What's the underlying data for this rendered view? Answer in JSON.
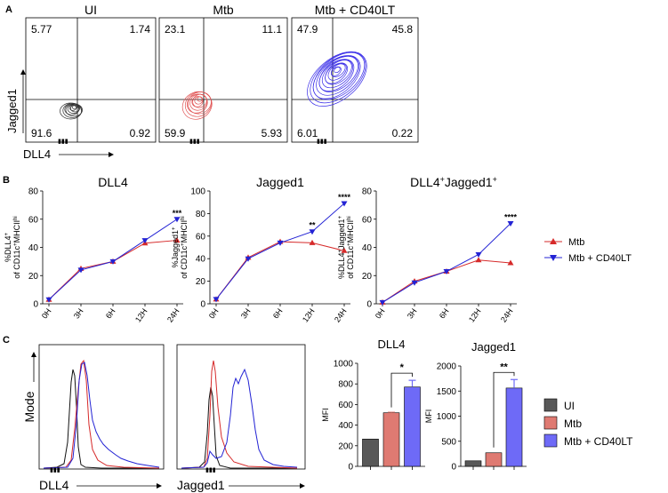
{
  "panels": {
    "a": "A",
    "b": "B",
    "c": "C"
  },
  "colors": {
    "ui": "#333333",
    "mtb": "#e05050",
    "cd40": "#3a2ee8",
    "bar_ui": "#585858",
    "bar_mtb": "#df7a72",
    "bar_cd40": "#6e6af7",
    "line_mtb": "#d62a2a",
    "line_cd40": "#2323d4"
  },
  "flow": {
    "ylabel": "Jagged1",
    "xlabel": "DLL4",
    "plots": [
      {
        "title": "UI",
        "quadrants": {
          "ul": "5.77",
          "ur": "1.74",
          "ll": "91.6",
          "lr": "0.92"
        }
      },
      {
        "title": "Mtb",
        "quadrants": {
          "ul": "23.1",
          "ur": "11.1",
          "ll": "59.9",
          "lr": "5.93"
        }
      },
      {
        "title": "Mtb + CD40LT",
        "quadrants": {
          "ul": "47.9",
          "ur": "45.8",
          "ll": "6.01",
          "lr": "0.22"
        }
      }
    ]
  },
  "histograms": {
    "ylabel": "Mode",
    "xlabels": [
      "DLL4",
      "Jagged1"
    ]
  },
  "legend_b": [
    "Mtb",
    "Mtb + CD40LT"
  ],
  "legend_c": [
    "UI",
    "Mtb",
    "Mtb + CD40LT"
  ],
  "chart_data": [
    {
      "type": "line",
      "title": "DLL4",
      "ylabel_main": "%DLL4",
      "ylabel_sup": "+",
      "ylabel_line2": "of CD11c",
      "ylabel_line2_sup": "+",
      "ylabel_line2_rest": "MHCII",
      "ylabel_line2_sup2": "hi",
      "categories": [
        "0H",
        "3H",
        "6H",
        "12H",
        "24H"
      ],
      "ylim": [
        0,
        80
      ],
      "yticks": [
        0,
        20,
        40,
        60,
        80
      ],
      "series": [
        {
          "name": "Mtb",
          "values": [
            3,
            25,
            30,
            43,
            45
          ]
        },
        {
          "name": "Mtb + CD40LT",
          "values": [
            3,
            24,
            30,
            45,
            60
          ]
        }
      ],
      "significance": [
        {
          "index": 4,
          "label": "***"
        }
      ]
    },
    {
      "type": "line",
      "title": "Jagged1",
      "ylabel_main": "%Jagged1",
      "ylabel_sup": "+",
      "ylabel_line2": "of CD11c",
      "ylabel_line2_sup": "+",
      "ylabel_line2_rest": "MHCII",
      "ylabel_line2_sup2": "hi",
      "categories": [
        "0H",
        "3H",
        "6H",
        "12H",
        "24H"
      ],
      "ylim": [
        0,
        100
      ],
      "yticks": [
        0,
        20,
        40,
        60,
        80,
        100
      ],
      "series": [
        {
          "name": "Mtb",
          "values": [
            4,
            41,
            55,
            54,
            47
          ]
        },
        {
          "name": "Mtb + CD40LT",
          "values": [
            4,
            40,
            54,
            64,
            89
          ]
        }
      ],
      "significance": [
        {
          "index": 3,
          "label": "**"
        },
        {
          "index": 4,
          "label": "****"
        }
      ]
    },
    {
      "type": "line",
      "title_main": "DLL4",
      "title_sup1": "+",
      "title_mid": "Jagged1",
      "title_sup2": "+",
      "ylabel_main": "%DLL4",
      "ylabel_sup": "+",
      "ylabel_main2": "Jagged1",
      "ylabel_sup_b": "+",
      "ylabel_line2": "of CD11c",
      "ylabel_line2_sup": "+",
      "ylabel_line2_rest": "MHCII",
      "ylabel_line2_sup2": "hi",
      "categories": [
        "0H",
        "3H",
        "6H",
        "12H",
        "24H"
      ],
      "ylim": [
        0,
        80
      ],
      "yticks": [
        0,
        20,
        40,
        60,
        80
      ],
      "series": [
        {
          "name": "Mtb",
          "values": [
            1,
            16,
            23,
            31,
            29
          ]
        },
        {
          "name": "Mtb + CD40LT",
          "values": [
            1,
            15,
            23,
            35,
            57
          ]
        }
      ],
      "significance": [
        {
          "index": 4,
          "label": "****"
        }
      ]
    },
    {
      "type": "bar",
      "title": "DLL4",
      "ylabel": "MFI",
      "categories": [
        "UI",
        "Mtb",
        "Mtb + CD40LT"
      ],
      "values": [
        265,
        520,
        770
      ],
      "errors": [
        0,
        5,
        65
      ],
      "ylim": [
        0,
        1000
      ],
      "yticks": [
        0,
        200,
        400,
        600,
        800,
        1000
      ],
      "significance": [
        {
          "from": 1,
          "to": 2,
          "label": "*"
        }
      ]
    },
    {
      "type": "bar",
      "title": "Jagged1",
      "ylabel": "MFI",
      "categories": [
        "UI",
        "Mtb",
        "Mtb + CD40LT"
      ],
      "values": [
        110,
        270,
        1560
      ],
      "errors": [
        0,
        0,
        170
      ],
      "ylim": [
        0,
        2000
      ],
      "yticks": [
        0,
        500,
        1000,
        1500,
        2000
      ],
      "significance": [
        {
          "from": 1,
          "to": 2,
          "label": "**"
        }
      ]
    }
  ]
}
